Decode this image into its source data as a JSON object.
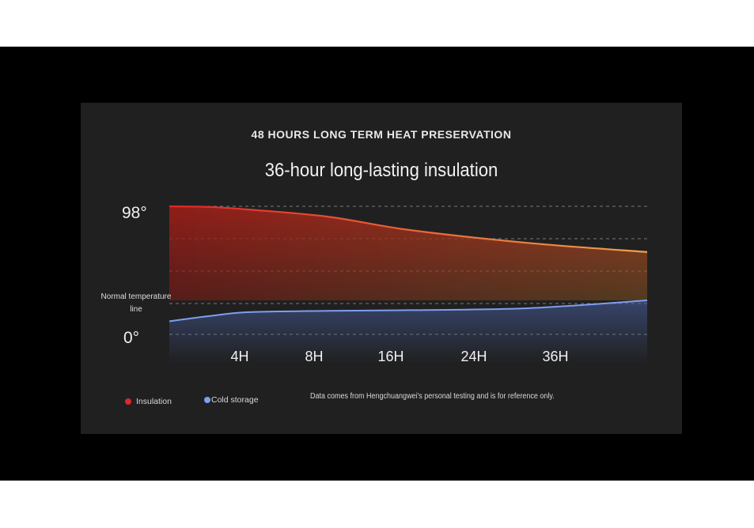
{
  "header": {
    "title": "48 HOURS LONG TERM HEAT PRESERVATION",
    "subtitle": "36-hour long-lasting insulation"
  },
  "footnote": "Data comes from Hengchuangwei's personal testing and is for reference only.",
  "colors": {
    "insulation_start": "#e0262a",
    "insulation_end": "#f0a24a",
    "cold": "#7f9ef0",
    "grid": "#777777",
    "background": "#202020"
  },
  "chart_data": {
    "type": "area",
    "title": "36-hour long-lasting insulation",
    "x_categories": [
      "4H",
      "8H",
      "16H",
      "24H",
      "36H"
    ],
    "y_tick_labels": {
      "top": "98°",
      "bottom": "0°"
    },
    "reference_line_label": "Normal temperature line",
    "grid": true,
    "legend_position": "bottom-left",
    "series": [
      {
        "name": "Insulation",
        "color": "#e0262a",
        "x": [
          0,
          4,
          8,
          16,
          24,
          36,
          48
        ],
        "values": [
          98,
          97.5,
          95.5,
          90,
          80,
          70,
          63
        ]
      },
      {
        "name": "Cold storage",
        "color": "#7f9ef0",
        "x": [
          0,
          4,
          8,
          16,
          24,
          36,
          48
        ],
        "values": [
          10,
          14,
          17,
          18,
          18.5,
          20,
          26
        ]
      }
    ]
  }
}
